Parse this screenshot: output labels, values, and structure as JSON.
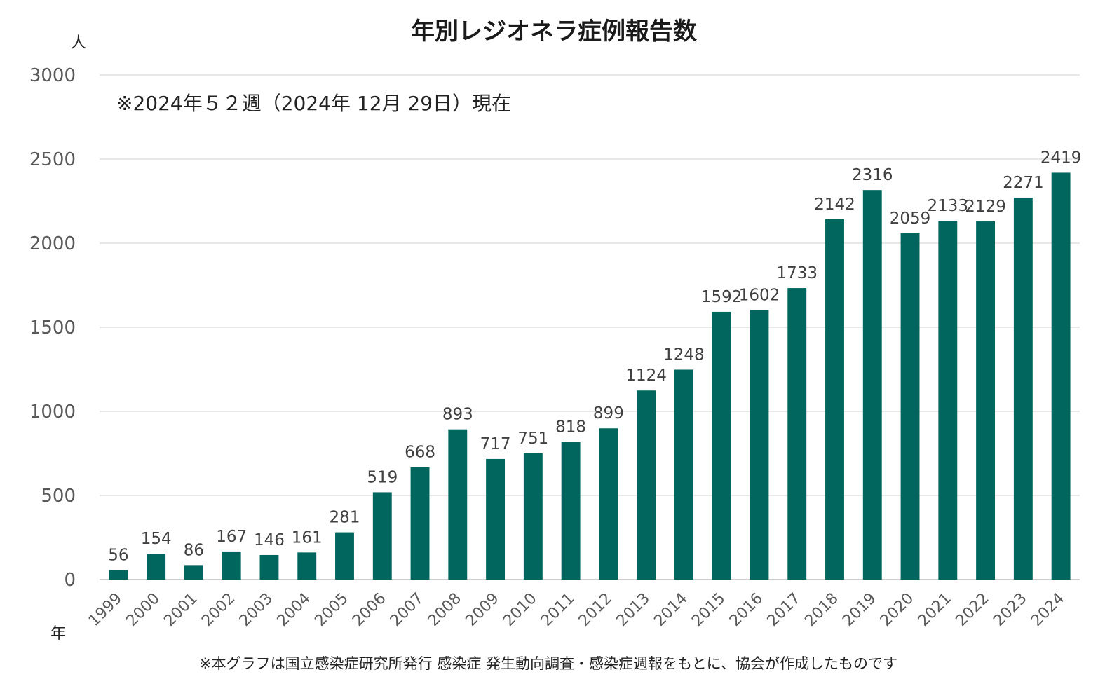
{
  "chart_data": {
    "type": "bar",
    "title": "年別レジオネラ症例報告数",
    "note": "※2024年５２週（2024年 12月 29日）現在",
    "source": "※本グラフは国立感染症研究所発行 感染症 発生動向調査・感染症週報をもとに、協会が作成したものです",
    "ylabel": "人",
    "xlabel": "年",
    "ylim": [
      0,
      3000
    ],
    "yticks": [
      "0",
      "500",
      "1000",
      "1500",
      "2000",
      "2500",
      "3000"
    ],
    "grid": true,
    "legend": "none",
    "bar_color": "#00665e",
    "categories": [
      "1999",
      "2000",
      "2001",
      "2002",
      "2003",
      "2004",
      "2005",
      "2006",
      "2007",
      "2008",
      "2009",
      "2010",
      "2011",
      "2012",
      "2013",
      "2014",
      "2015",
      "2016",
      "2017",
      "2018",
      "2019",
      "2020",
      "2021",
      "2022",
      "2023",
      "2024"
    ],
    "values": [
      56,
      154,
      86,
      167,
      146,
      161,
      281,
      519,
      668,
      893,
      717,
      751,
      818,
      899,
      1124,
      1248,
      1592,
      1602,
      1733,
      2142,
      2316,
      2059,
      2133,
      2129,
      2271,
      2419
    ],
    "data_labels": [
      "56",
      "154",
      "86",
      "167",
      "146",
      "161",
      "281",
      "519",
      "668",
      "893",
      "717",
      "751",
      "818",
      "899",
      "1124",
      "1248",
      "1592",
      "1602",
      "1733",
      "2142",
      "2316",
      "2059",
      "2133",
      "2129",
      "2271",
      "2419"
    ]
  }
}
